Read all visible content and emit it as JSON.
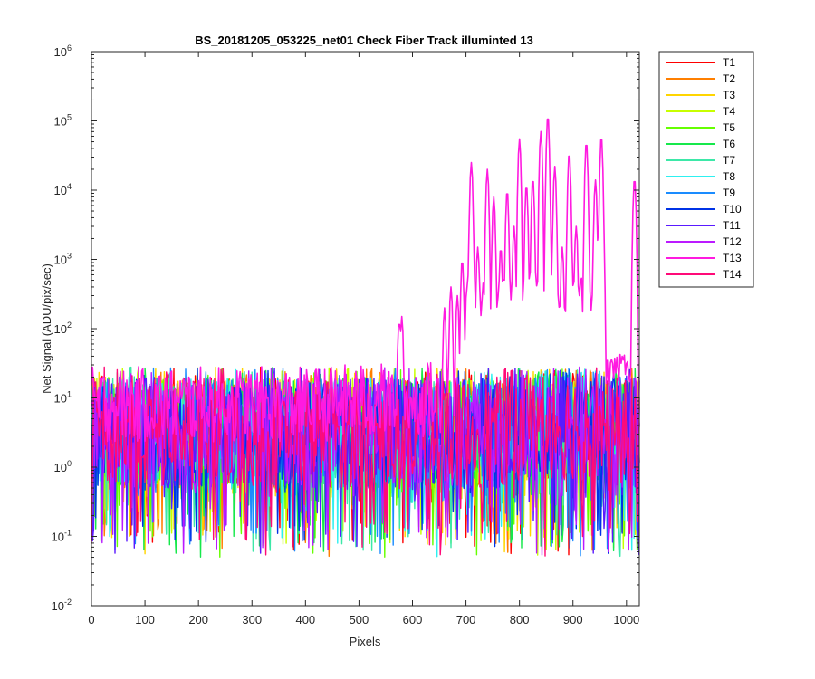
{
  "chart_data": {
    "type": "line",
    "title": "BS_20181205_053225_net01   Check Fiber     Track illuminted 13",
    "xlabel": "Pixels",
    "ylabel": "Net Signal (ADU/pix/sec)",
    "xlim": [
      0,
      1024
    ],
    "ylim": [
      0.01,
      1000000
    ],
    "yscale": "log",
    "xticks": [
      "0",
      "100",
      "200",
      "300",
      "400",
      "500",
      "600",
      "700",
      "800",
      "900",
      "1000"
    ],
    "yticks": [
      {
        "base": "10",
        "exp": "-2"
      },
      {
        "base": "10",
        "exp": "-1"
      },
      {
        "base": "10",
        "exp": "0"
      },
      {
        "base": "10",
        "exp": "1"
      },
      {
        "base": "10",
        "exp": "2"
      },
      {
        "base": "10",
        "exp": "3"
      },
      {
        "base": "10",
        "exp": "4"
      },
      {
        "base": "10",
        "exp": "5"
      },
      {
        "base": "10",
        "exp": "6"
      }
    ],
    "grid": false,
    "legend_position": "outside-top-right",
    "series": [
      {
        "name": "T1",
        "color": "#ff0000"
      },
      {
        "name": "T2",
        "color": "#ff7f00"
      },
      {
        "name": "T3",
        "color": "#ffd500"
      },
      {
        "name": "T4",
        "color": "#c8ff00"
      },
      {
        "name": "T5",
        "color": "#66ff00"
      },
      {
        "name": "T6",
        "color": "#16e84b"
      },
      {
        "name": "T7",
        "color": "#3de8a8"
      },
      {
        "name": "T8",
        "color": "#2ef0f0"
      },
      {
        "name": "T9",
        "color": "#1a8cff"
      },
      {
        "name": "T10",
        "color": "#0033e6"
      },
      {
        "name": "T11",
        "color": "#5a1aff"
      },
      {
        "name": "T12",
        "color": "#bb1aff"
      },
      {
        "name": "T13",
        "color": "#ff1ae0"
      },
      {
        "name": "T14",
        "color": "#ff0a78"
      }
    ],
    "illuminated_track": {
      "name": "T13",
      "baseline_x": [
        0,
        100,
        200,
        300,
        400,
        500,
        560,
        600,
        650,
        680
      ],
      "baseline_y": [
        8,
        8,
        8,
        8,
        8,
        9,
        9,
        9,
        10,
        12
      ],
      "peaks_x": [
        575,
        580,
        660,
        672,
        684,
        693,
        710,
        722,
        740,
        752,
        765,
        777,
        790,
        800,
        813,
        825,
        840,
        853,
        866,
        880,
        893,
        906,
        925,
        942,
        953,
        1015
      ],
      "peaks_y": [
        130,
        150,
        200,
        400,
        300,
        1000,
        25000,
        1500,
        20000,
        8000,
        1500,
        10000,
        3000,
        55000,
        12000,
        15000,
        70000,
        120000,
        22000,
        1500,
        35000,
        3000,
        50000,
        14000,
        60000,
        15000
      ]
    },
    "noise_band": {
      "typical_range": [
        0.5,
        20
      ],
      "dip_floor": 0.05,
      "spike_ceiling": 28
    }
  }
}
